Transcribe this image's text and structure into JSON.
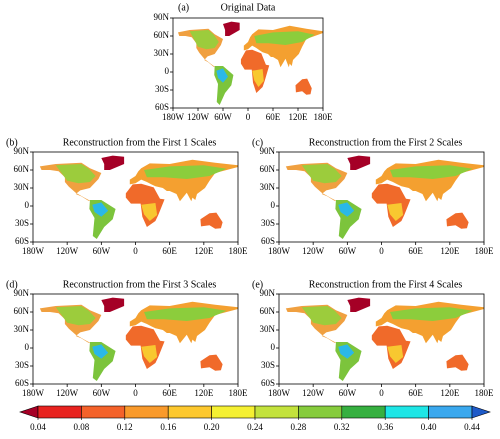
{
  "panels": [
    {
      "label": "(a)",
      "title": "Original Data"
    },
    {
      "label": "(b)",
      "title": "Reconstruction from the First 1 Scales"
    },
    {
      "label": "(c)",
      "title": "Reconstruction from the First 2 Scales"
    },
    {
      "label": "(d)",
      "title": "Reconstruction from the First 3 Scales"
    },
    {
      "label": "(e)",
      "title": "Reconstruction from the First 4 Scales"
    }
  ],
  "map_axes": {
    "latlim": [
      -60,
      90
    ],
    "lonlim": [
      -180,
      180
    ],
    "latticks": [
      {
        "value": 90,
        "label": "90N"
      },
      {
        "value": 60,
        "label": "60N"
      },
      {
        "value": 30,
        "label": "30N"
      },
      0,
      {
        "value": -30,
        "label": "30S"
      },
      {
        "value": -60,
        "label": "60S"
      }
    ],
    "lonticks": [
      {
        "value": -180,
        "label": "180W"
      },
      {
        "value": -120,
        "label": "120W"
      },
      {
        "value": -60,
        "label": "60W"
      },
      0,
      {
        "value": 60,
        "label": "60E"
      },
      {
        "value": 120,
        "label": "120E"
      },
      {
        "value": 180,
        "label": "180E"
      }
    ]
  },
  "colorbar": {
    "ticks": [
      0.04,
      0.08,
      0.12,
      0.16,
      {
        "value": 0.2,
        "label": "0.20"
      },
      0.24,
      0.28,
      0.32,
      0.36,
      {
        "value": 0.4,
        "label": "0.40"
      },
      0.44
    ],
    "colors": [
      "#a50026",
      "#e8231f",
      "#f4622a",
      "#f99a2b",
      "#fdc82e",
      "#f5f032",
      "#c3e23c",
      "#86cc3c",
      "#36b040",
      "#1ee6e6",
      "#3aa8ee",
      "#1e5ac8"
    ]
  }
}
